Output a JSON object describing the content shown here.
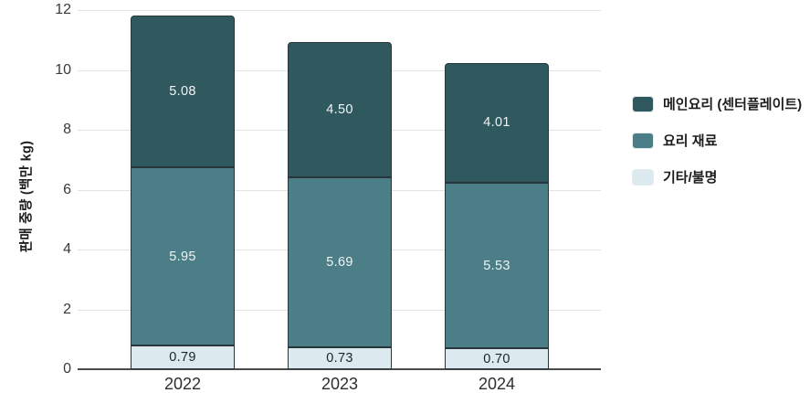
{
  "chart_data": {
    "type": "bar",
    "stacked": true,
    "title": "",
    "categories": [
      "2022",
      "2023",
      "2024"
    ],
    "series": [
      {
        "name": "기타/불명",
        "values": [
          0.79,
          0.73,
          0.7
        ],
        "labels": [
          "0.79",
          "0.73",
          "0.70"
        ],
        "color": "#dceaf0",
        "label_color": "#16262a"
      },
      {
        "name": "요리 재료",
        "values": [
          5.95,
          5.69,
          5.53
        ],
        "labels": [
          "5.95",
          "5.69",
          "5.53"
        ],
        "color": "#4b7e86",
        "label_color": "#eff5f6"
      },
      {
        "name": "메인요리 (센터플레이트)",
        "values": [
          5.08,
          4.5,
          4.01
        ],
        "labels": [
          "5.08",
          "4.50",
          "4.01"
        ],
        "color": "#30595f",
        "label_color": "#eff5f6"
      }
    ],
    "totals": [
      11.82,
      10.92,
      10.24
    ],
    "legend": [
      "메인요리 (센터플레이트)",
      "요리 재료",
      "기타/불명"
    ],
    "legend_position": "right",
    "xlabel": "",
    "ylabel": "판매 중량 (백만 kg)",
    "ylim": [
      0,
      12
    ],
    "yticks": [
      "0",
      "2",
      "4",
      "6",
      "8",
      "10",
      "12"
    ],
    "grid": true,
    "colors": {
      "grid": "#e3e3e3",
      "axis_line": "#4a4a4a",
      "tick_text": "#3a3a3a",
      "segment_border": "#26363b"
    }
  }
}
